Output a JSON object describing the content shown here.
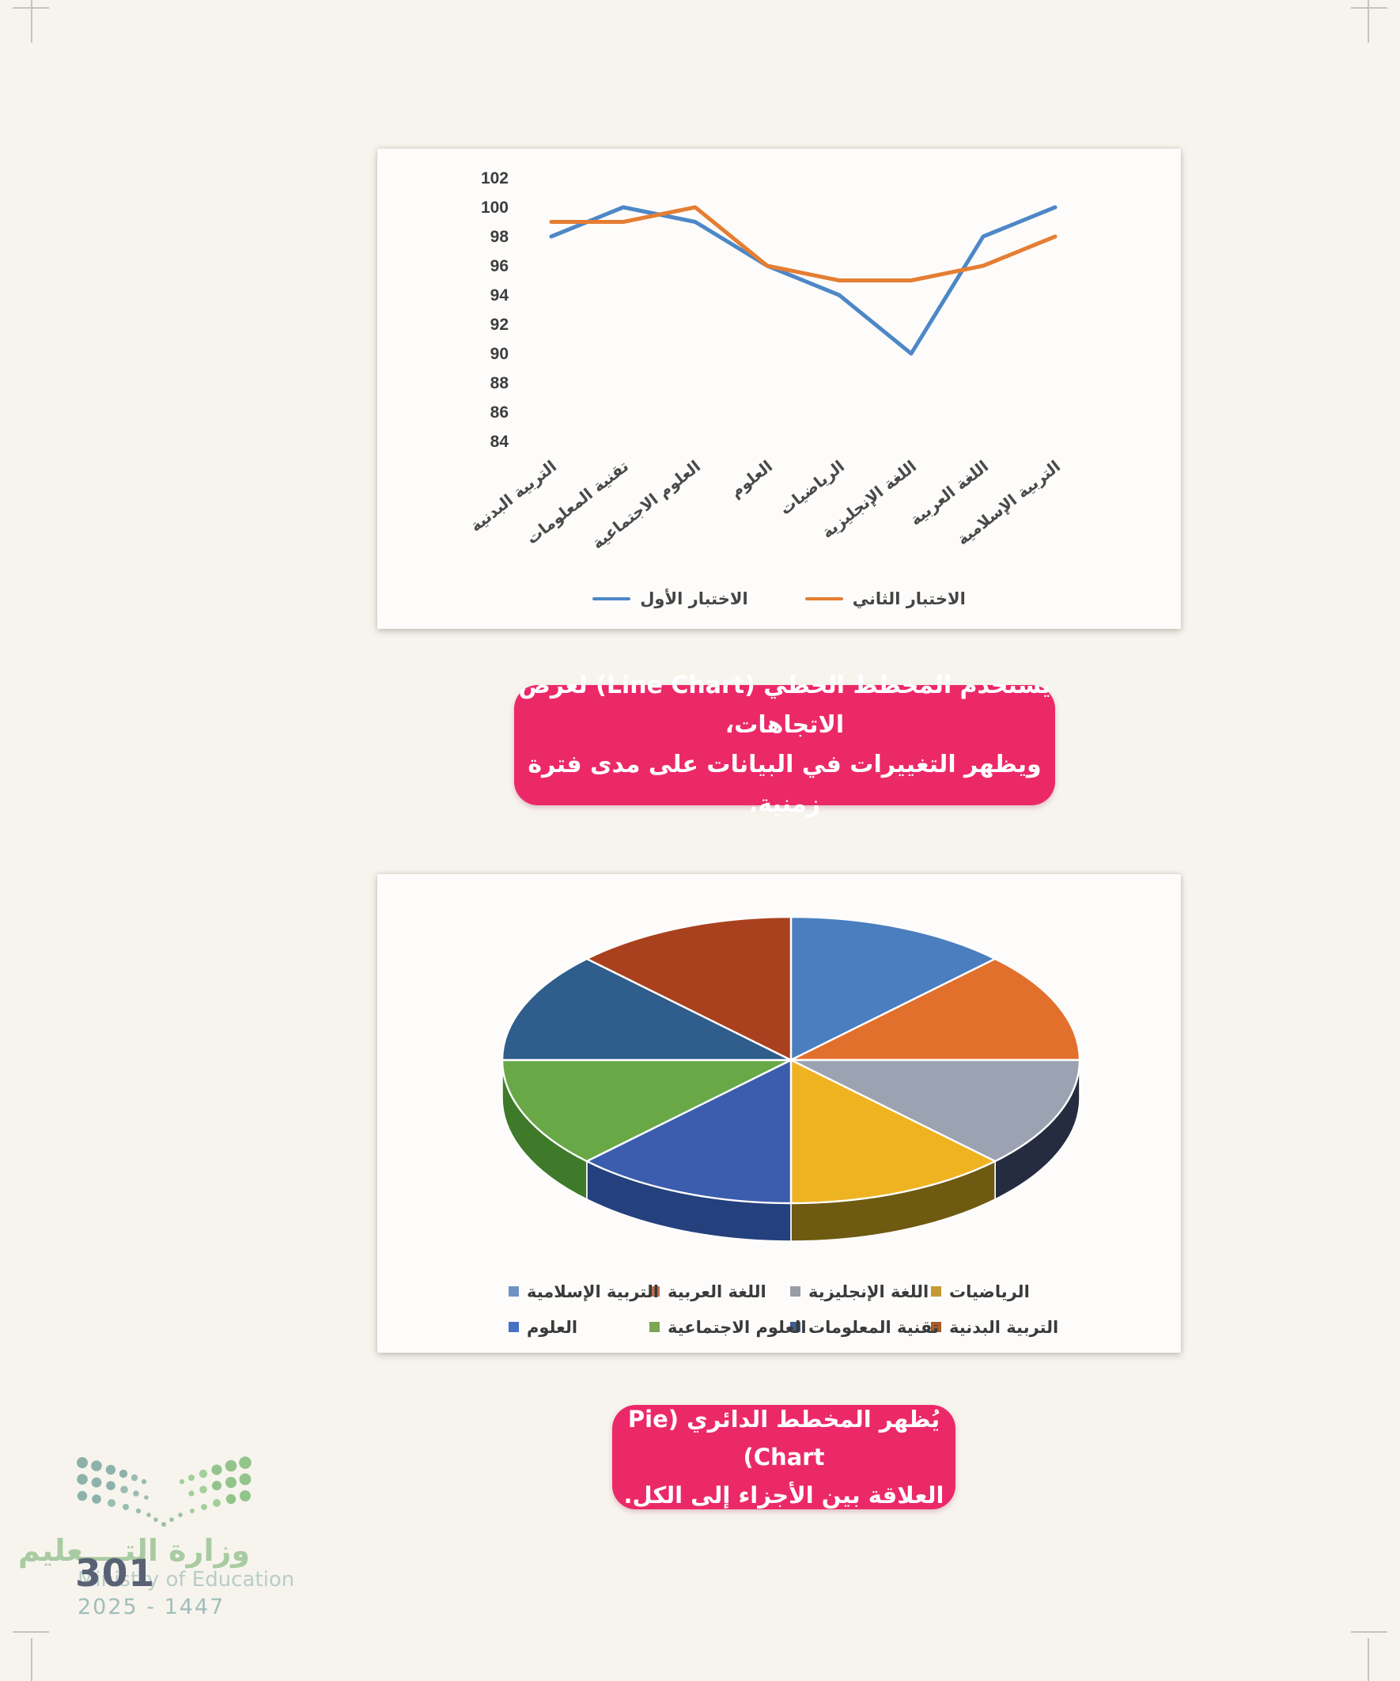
{
  "accent": {
    "pink": "#ec2968"
  },
  "chart_data": [
    {
      "type": "line",
      "title": "",
      "categories": [
        "التربية البدنية",
        "تقنية المعلومات",
        "العلوم الاجتماعية",
        "العلوم",
        "الرياضيات",
        "اللغة الإنجليزية",
        "اللغة العربية",
        "التربية الإسلامية"
      ],
      "series": [
        {
          "name": "الاختبار الأول",
          "color": "#4d87c7",
          "values": [
            98,
            100,
            99,
            96,
            94,
            90,
            98,
            100
          ]
        },
        {
          "name": "الاختبار الثاني",
          "color": "#e57e33",
          "values": [
            99,
            99,
            100,
            96,
            95,
            95,
            96,
            98
          ]
        }
      ],
      "ylim": [
        84,
        102
      ],
      "ytick_step": 2,
      "grid": false,
      "legend_position": "bottom"
    },
    {
      "type": "pie",
      "title": "",
      "slices": [
        {
          "label": "التربية الإسلامية",
          "value": 12.5,
          "color": "#4b7ebe",
          "rim": "#2c4d7e",
          "legend_color": "#6e93c2"
        },
        {
          "label": "اللغة العربية",
          "value": 12.5,
          "color": "#e2702d",
          "rim": "#8a3f14",
          "legend_color": "#be7150"
        },
        {
          "label": "اللغة الإنجليزية",
          "value": 12.5,
          "color": "#9ba3b2",
          "rim": "#262c40",
          "legend_color": "#9b9da6"
        },
        {
          "label": "الرياضيات",
          "value": 12.5,
          "color": "#efb322",
          "rim": "#6e5a10",
          "legend_color": "#c49a35"
        },
        {
          "label": "العلوم",
          "value": 12.5,
          "color": "#3c5dad",
          "rim": "#24407d",
          "legend_color": "#4472c4"
        },
        {
          "label": "العلوم الاجتماعية",
          "value": 12.5,
          "color": "#68a847",
          "rim": "#3f7a2a",
          "legend_color": "#7ca653"
        },
        {
          "label": "تقنية المعلومات",
          "value": 12.5,
          "color": "#2f5d8c",
          "rim": "#1d3c5e",
          "legend_color": "#3f5f8c"
        },
        {
          "label": "التربية البدنية",
          "value": 12.5,
          "color": "#a9411e",
          "rim": "#6e2a12",
          "legend_color": "#a85b28"
        }
      ],
      "legend_rows": [
        [
          "الرياضيات",
          "اللغة الإنجليزية",
          "اللغة العربية",
          "التربية الإسلامية"
        ],
        [
          "التربية البدنية",
          "تقنية المعلومات",
          "العلوم الاجتماعية",
          "العلوم"
        ]
      ]
    }
  ],
  "callout_line": {
    "line1": "يستخدم المخطط الخطي (Line Chart) لعرض الاتجاهات،",
    "line2": "ويظهر التغييرات في البيانات على مدى فترة زمنية."
  },
  "callout_pie": {
    "line1": "يُظهر المخطط الدائري (Pie Chart)",
    "line2": "العلاقة بين الأجزاء إلى الكل."
  },
  "footer": {
    "ministry_arabic": "وزارة التــــعليم",
    "ministry_english": "Ministry of Education",
    "years": "2025 - 1447",
    "page_number": "301"
  }
}
